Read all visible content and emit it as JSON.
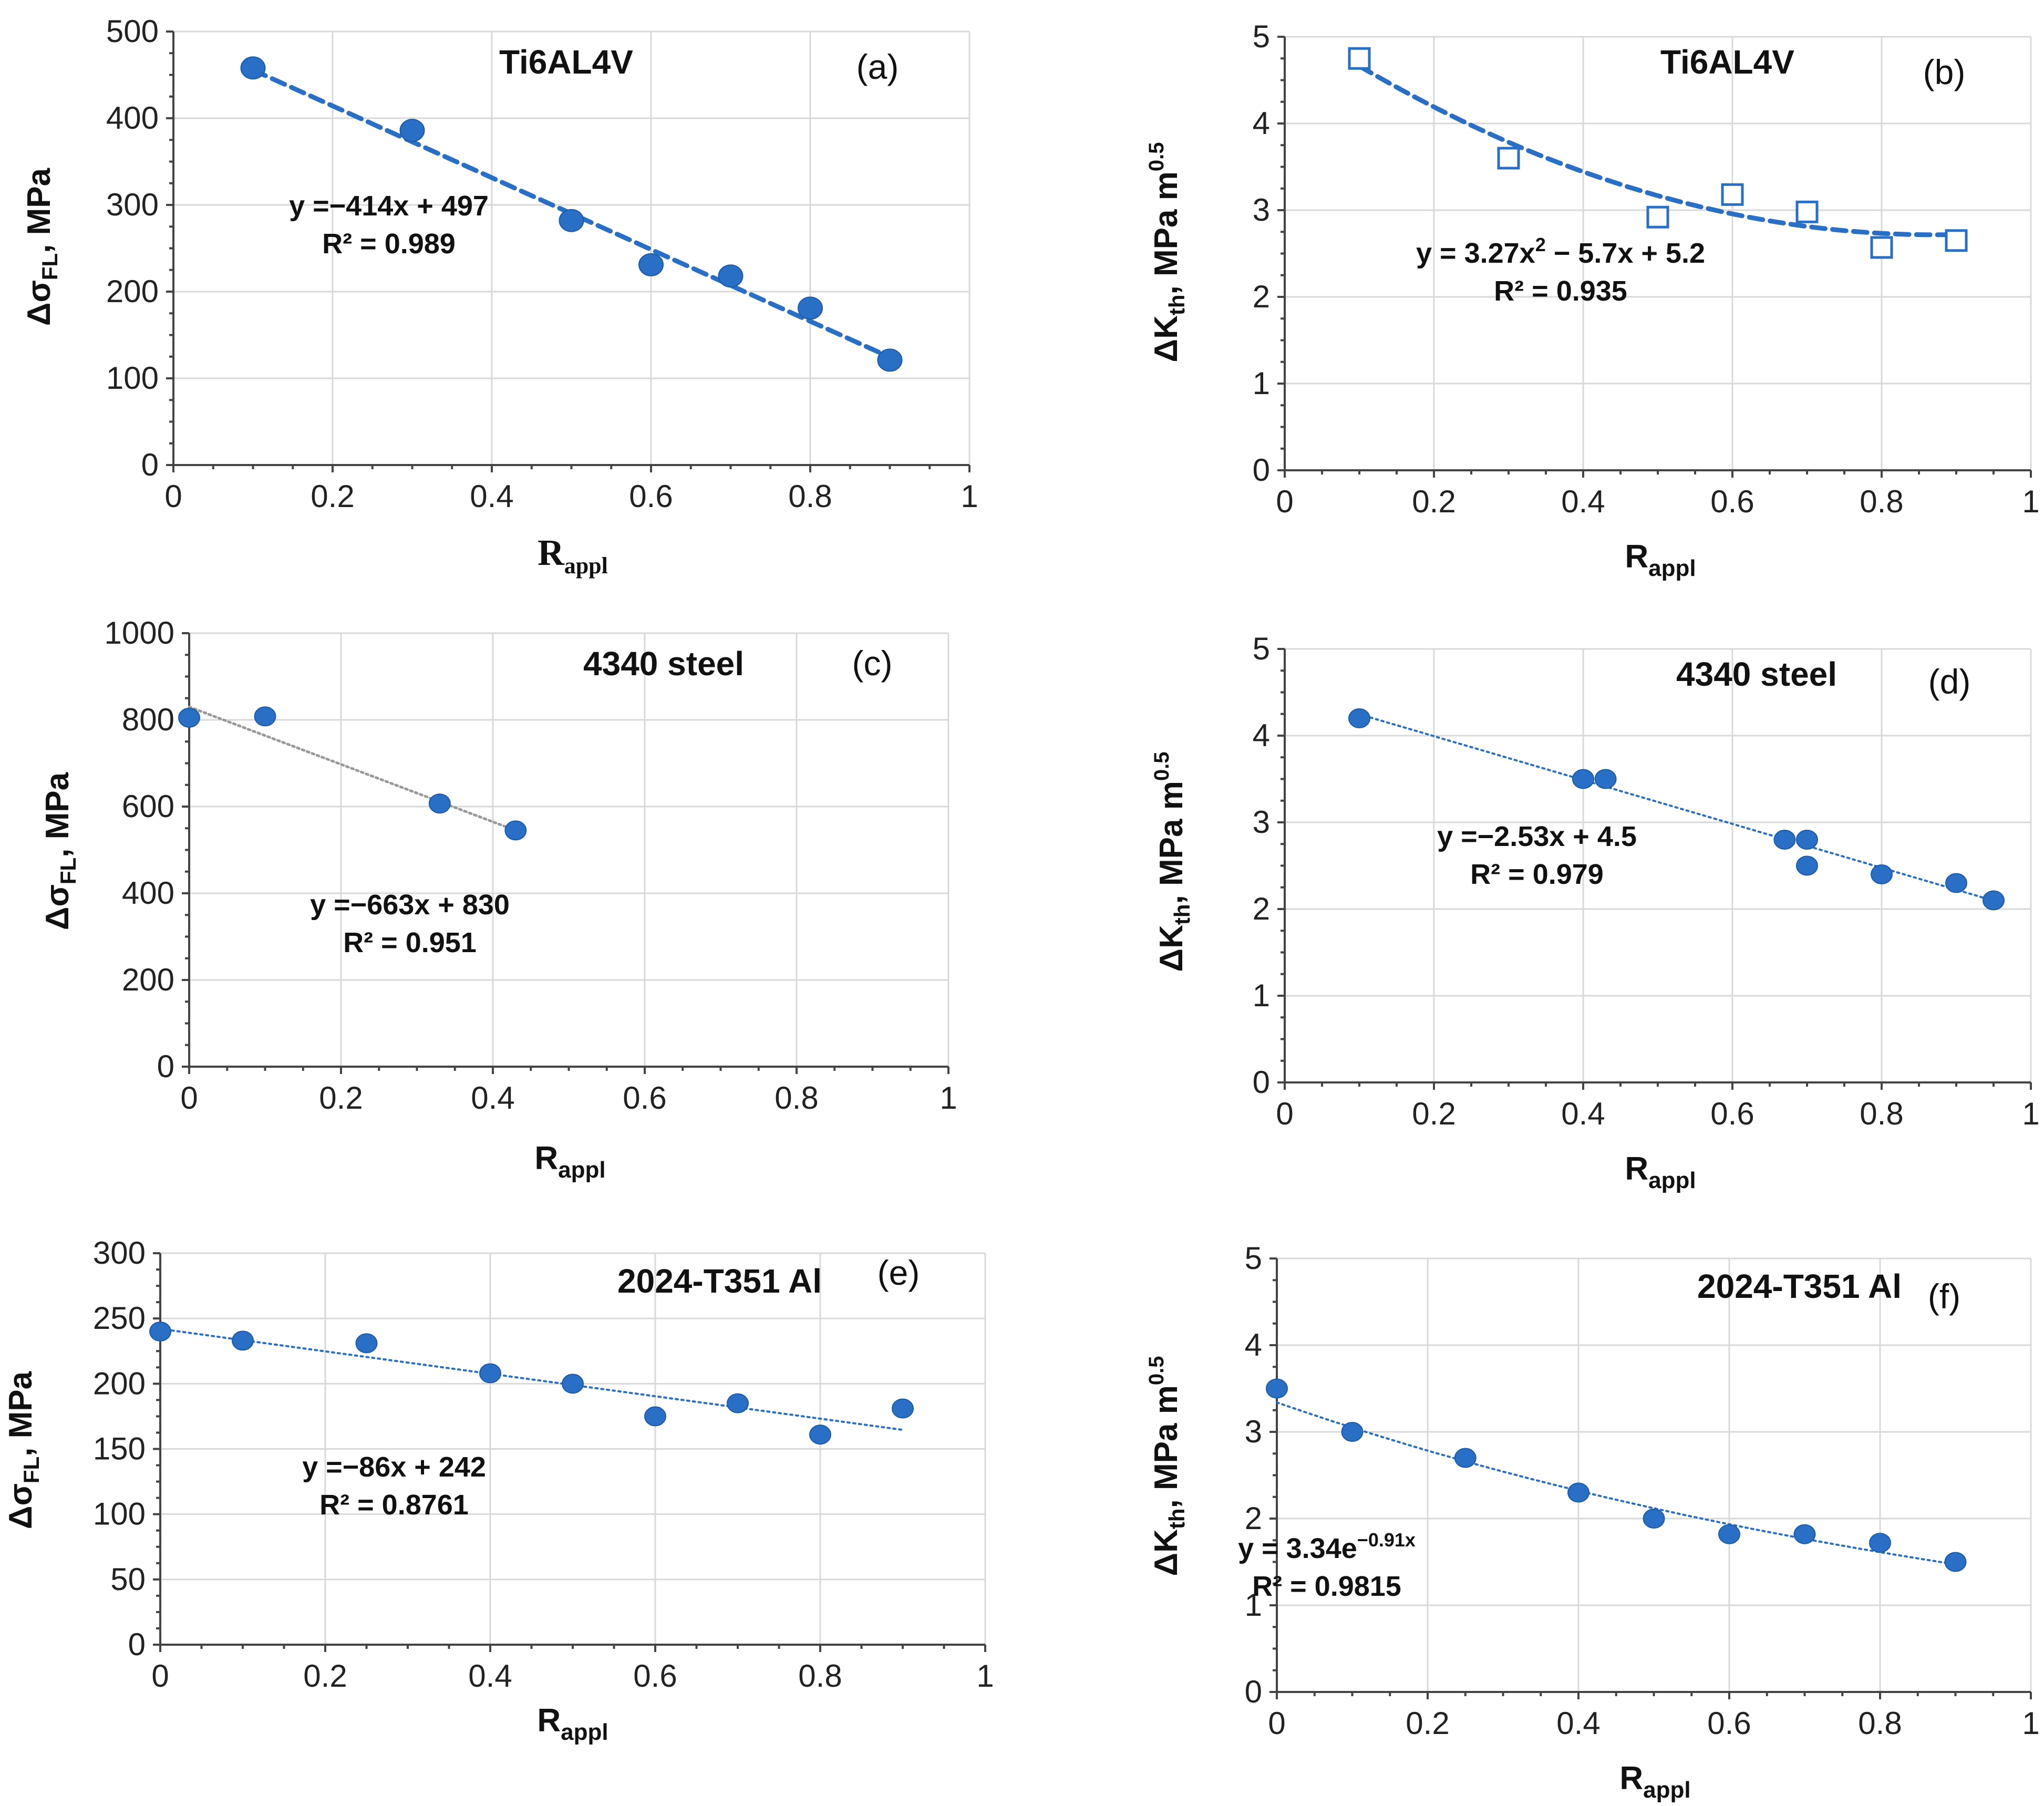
{
  "chart_data": [
    {
      "id": "a",
      "type": "scatter",
      "material": "Ti6AL4V",
      "panel_label": "(a)",
      "xlabel": "R",
      "xlabel_sub": "appl",
      "ylabel_delta": "Δσ",
      "ylabel_sub": "FL",
      "ylabel_tail": ", MPa",
      "xlim": [
        0,
        1
      ],
      "ylim": [
        0,
        500
      ],
      "xticks": [
        "0",
        "0.2",
        "0.4",
        "0.6",
        "0.8",
        "1"
      ],
      "yticks": [
        "0",
        "100",
        "200",
        "300",
        "400",
        "500"
      ],
      "x": [
        0.1,
        0.3,
        0.5,
        0.6,
        0.7,
        0.8,
        0.9
      ],
      "y": [
        458,
        386,
        282,
        231,
        218,
        181,
        121
      ],
      "marker": "circle",
      "trendline": {
        "type": "linear",
        "coef": [
          -414,
          497
        ],
        "x_range": [
          0.1,
          0.9
        ],
        "style": "dashed"
      },
      "equation": "y =−414x + 497",
      "r2": "R² = 0.989",
      "color": "#2a6fc6"
    },
    {
      "id": "b",
      "type": "scatter",
      "material": "Ti6AL4V",
      "panel_label": "(b)",
      "xlabel": "R",
      "xlabel_sub": "appl",
      "ylabel_delta": "ΔK",
      "ylabel_sub": "th",
      "ylabel_tail": ", MPa m",
      "ylabel_sup": "0.5",
      "xlim": [
        0,
        1
      ],
      "ylim": [
        0,
        5
      ],
      "xticks": [
        "0",
        "0.2",
        "0.4",
        "0.6",
        "0.8",
        "1"
      ],
      "yticks": [
        "0",
        "1",
        "2",
        "3",
        "4",
        "5"
      ],
      "x": [
        0.1,
        0.3,
        0.5,
        0.6,
        0.7,
        0.8,
        0.9
      ],
      "y": [
        4.75,
        3.6,
        2.92,
        3.18,
        2.98,
        2.57,
        2.65
      ],
      "marker": "square-open",
      "trendline": {
        "type": "poly2",
        "coef": [
          3.27,
          -5.7,
          5.2
        ],
        "x_range": [
          0.1,
          0.9
        ],
        "style": "dashed"
      },
      "equation_pre": "y = 3.27x",
      "equation_sup": "2",
      "equation_post": " − 5.7x + 5.2",
      "r2": "R² = 0.935",
      "color": "#2a6fc6"
    },
    {
      "id": "c",
      "type": "scatter",
      "material": "4340 steel",
      "panel_label": "(c)",
      "xlabel": "R",
      "xlabel_sub": "appl",
      "ylabel_delta": "Δσ",
      "ylabel_sub": "FL",
      "ylabel_tail": ", MPa",
      "xlim": [
        0,
        1
      ],
      "ylim": [
        0,
        1000
      ],
      "xticks": [
        "0",
        "0.2",
        "0.4",
        "0.6",
        "0.8",
        "1"
      ],
      "yticks": [
        "0",
        "200",
        "400",
        "600",
        "800",
        "1000"
      ],
      "x": [
        0,
        0.1,
        0.33,
        0.43
      ],
      "y": [
        805,
        808,
        607,
        545
      ],
      "marker": "circle",
      "trendline": {
        "type": "linear",
        "coef": [
          -663,
          830
        ],
        "x_range": [
          0,
          0.43
        ],
        "style": "dotted-gray"
      },
      "equation": "y =−663x + 830",
      "r2": "R² = 0.951",
      "color": "#2a6fc6"
    },
    {
      "id": "d",
      "type": "scatter",
      "material": "4340 steel",
      "panel_label": "(d)",
      "xlabel": "R",
      "xlabel_sub": "appl",
      "ylabel_delta": "ΔK",
      "ylabel_sub": "th",
      "ylabel_tail": ", MPa m",
      "ylabel_sup": "0.5",
      "xlim": [
        0,
        1
      ],
      "ylim": [
        0,
        5
      ],
      "xticks": [
        "0",
        "0.2",
        "0.4",
        "0.6",
        "0.8",
        "1"
      ],
      "yticks": [
        "0",
        "1",
        "2",
        "3",
        "4",
        "5"
      ],
      "x": [
        0.1,
        0.4,
        0.43,
        0.67,
        0.7,
        0.7,
        0.8,
        0.9,
        0.95
      ],
      "y": [
        4.2,
        3.5,
        3.5,
        2.8,
        2.8,
        2.5,
        2.4,
        2.3,
        2.1
      ],
      "marker": "circle",
      "trendline": {
        "type": "linear",
        "coef": [
          -2.53,
          4.5
        ],
        "x_range": [
          0.1,
          0.95
        ],
        "style": "dotted"
      },
      "equation": "y =−2.53x + 4.5",
      "r2": "R² = 0.979",
      "color": "#2a6fc6"
    },
    {
      "id": "e",
      "type": "scatter",
      "material": "2024-T351 Al",
      "panel_label": "(e)",
      "xlabel": "R",
      "xlabel_sub": "appl",
      "ylabel_delta": "Δσ",
      "ylabel_sub": "FL",
      "ylabel_tail": ", MPa",
      "xlim": [
        0,
        1
      ],
      "ylim": [
        0,
        300
      ],
      "xticks": [
        "0",
        "0.2",
        "0.4",
        "0.6",
        "0.8",
        "1"
      ],
      "yticks": [
        "0",
        "50",
        "100",
        "150",
        "200",
        "250",
        "300"
      ],
      "x": [
        0,
        0.1,
        0.25,
        0.4,
        0.5,
        0.6,
        0.7,
        0.8,
        0.9
      ],
      "y": [
        240,
        233,
        231,
        208,
        200,
        175,
        185,
        161,
        181
      ],
      "marker": "circle",
      "trendline": {
        "type": "linear",
        "coef": [
          -86,
          242
        ],
        "x_range": [
          0,
          0.9
        ],
        "style": "dotted"
      },
      "equation": "y =−86x + 242",
      "r2": "R² = 0.8761",
      "color": "#2a6fc6"
    },
    {
      "id": "f",
      "type": "scatter",
      "material": "2024-T351 Al",
      "panel_label": "(f)",
      "xlabel": "R",
      "xlabel_sub": "appl",
      "ylabel_delta": "ΔK",
      "ylabel_sub": "th",
      "ylabel_tail": ", MPa m",
      "ylabel_sup": "0.5",
      "xlim": [
        0,
        1
      ],
      "ylim": [
        0,
        5
      ],
      "xticks": [
        "0",
        "0.2",
        "0.4",
        "0.6",
        "0.8",
        "1"
      ],
      "yticks": [
        "0",
        "1",
        "2",
        "3",
        "4",
        "5"
      ],
      "x": [
        0,
        0.1,
        0.25,
        0.4,
        0.5,
        0.6,
        0.7,
        0.8,
        0.9
      ],
      "y": [
        3.5,
        3.0,
        2.7,
        2.3,
        2.0,
        1.82,
        1.82,
        1.72,
        1.5
      ],
      "marker": "circle",
      "trendline": {
        "type": "exp",
        "coef": [
          3.34,
          -0.91
        ],
        "x_range": [
          0,
          0.9
        ],
        "style": "dotted"
      },
      "equation_pre": "y = 3.34e",
      "equation_sup": "−0.91x",
      "r2": "R² = 0.9815",
      "color": "#2a6fc6"
    }
  ]
}
